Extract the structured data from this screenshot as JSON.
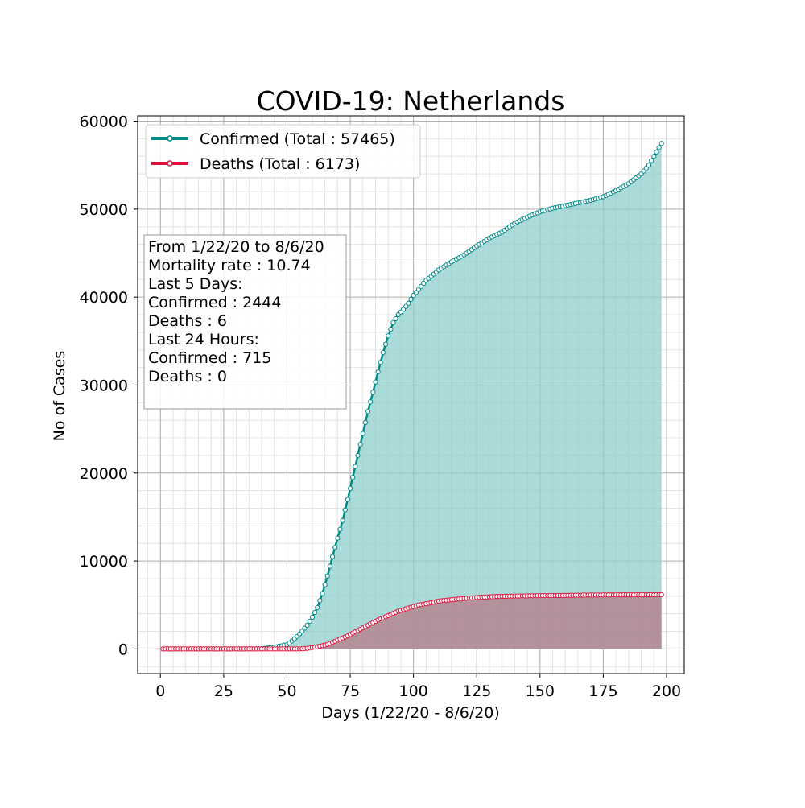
{
  "chart_data": {
    "type": "area",
    "title": "COVID-19: Netherlands",
    "xlabel": "Days (1/22/20 - 8/6/20)",
    "ylabel": "No of Cases",
    "xlim": [
      -9,
      207
    ],
    "ylim": [
      -2800,
      60600
    ],
    "xticks": [
      0,
      25,
      50,
      75,
      100,
      125,
      150,
      175,
      200
    ],
    "xtick_labels": [
      "0",
      "25",
      "50",
      "75",
      "100",
      "125",
      "150",
      "175",
      "200"
    ],
    "yticks": [
      0,
      10000,
      20000,
      30000,
      40000,
      50000,
      60000
    ],
    "ytick_labels": [
      "0",
      "10000",
      "20000",
      "30000",
      "40000",
      "50000",
      "60000"
    ],
    "grid": true,
    "minor_grid": true,
    "legend_position": "top-left",
    "series": [
      {
        "name": "Confirmed (Total : 57465)",
        "color": "#008b8b",
        "fill": "#8fcfcb",
        "key_points": [
          [
            1,
            0
          ],
          [
            35,
            0
          ],
          [
            40,
            20
          ],
          [
            45,
            200
          ],
          [
            50,
            480
          ],
          [
            52,
            900
          ],
          [
            55,
            1700
          ],
          [
            58,
            2700
          ],
          [
            60,
            3600
          ],
          [
            62,
            4700
          ],
          [
            64,
            6300
          ],
          [
            66,
            8300
          ],
          [
            68,
            10500
          ],
          [
            70,
            12600
          ],
          [
            72,
            14600
          ],
          [
            74,
            17000
          ],
          [
            76,
            19500
          ],
          [
            78,
            22000
          ],
          [
            80,
            24500
          ],
          [
            82,
            27000
          ],
          [
            84,
            29200
          ],
          [
            86,
            31500
          ],
          [
            88,
            33700
          ],
          [
            90,
            35600
          ],
          [
            92,
            37100
          ],
          [
            94,
            38000
          ],
          [
            96,
            38600
          ],
          [
            98,
            39300
          ],
          [
            100,
            40200
          ],
          [
            105,
            41900
          ],
          [
            110,
            43100
          ],
          [
            115,
            44000
          ],
          [
            120,
            44800
          ],
          [
            125,
            45800
          ],
          [
            130,
            46700
          ],
          [
            135,
            47400
          ],
          [
            140,
            48400
          ],
          [
            145,
            49100
          ],
          [
            150,
            49700
          ],
          [
            155,
            50100
          ],
          [
            160,
            50400
          ],
          [
            165,
            50700
          ],
          [
            170,
            51000
          ],
          [
            175,
            51400
          ],
          [
            180,
            52100
          ],
          [
            185,
            52900
          ],
          [
            190,
            54000
          ],
          [
            193,
            55000
          ],
          [
            196,
            56500
          ],
          [
            198,
            57465
          ]
        ]
      },
      {
        "name": "Deaths (Total : 6173)",
        "color": "#dc143c",
        "fill": "#b48592",
        "key_points": [
          [
            1,
            0
          ],
          [
            55,
            0
          ],
          [
            58,
            60
          ],
          [
            62,
            250
          ],
          [
            66,
            500
          ],
          [
            70,
            1000
          ],
          [
            74,
            1500
          ],
          [
            78,
            2100
          ],
          [
            82,
            2700
          ],
          [
            86,
            3300
          ],
          [
            90,
            3800
          ],
          [
            94,
            4300
          ],
          [
            98,
            4650
          ],
          [
            102,
            5000
          ],
          [
            106,
            5200
          ],
          [
            110,
            5450
          ],
          [
            115,
            5600
          ],
          [
            120,
            5750
          ],
          [
            125,
            5850
          ],
          [
            130,
            5930
          ],
          [
            135,
            5980
          ],
          [
            140,
            6020
          ],
          [
            150,
            6060
          ],
          [
            160,
            6090
          ],
          [
            170,
            6130
          ],
          [
            180,
            6150
          ],
          [
            190,
            6160
          ],
          [
            198,
            6173
          ]
        ]
      }
    ],
    "annotation": [
      "From 1/22/20 to 8/6/20",
      "Mortality rate : 10.74",
      "Last 5 Days:",
      "Confirmed : 2444",
      "Deaths : 6",
      "Last 24 Hours:",
      "Confirmed : 715",
      "Deaths : 0"
    ]
  }
}
